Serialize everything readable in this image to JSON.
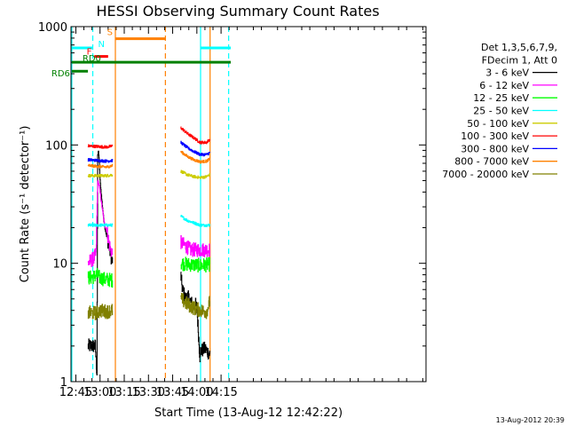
{
  "chart_data": {
    "type": "line",
    "title": "HESSI Observing Summary Count Rates",
    "xlabel": "Start Time (13-Aug-12 12:42:22)",
    "ylabel": "Count Rate (s⁻¹ detector⁻¹)",
    "yscale": "log",
    "xlim": [
      762,
      982
    ],
    "ylim": [
      1,
      1000
    ],
    "x_ticks": [
      {
        "value": 765,
        "label": "12:45"
      },
      {
        "value": 780,
        "label": "13:00"
      },
      {
        "value": 795,
        "label": "13:15"
      },
      {
        "value": 810,
        "label": "13:30"
      },
      {
        "value": 825,
        "label": "13:45"
      },
      {
        "value": 840,
        "label": "14:00"
      },
      {
        "value": 855,
        "label": "14:15"
      }
    ],
    "y_ticks": [
      {
        "value": 1,
        "label": "1"
      },
      {
        "value": 10,
        "label": "10"
      },
      {
        "value": 100,
        "label": "100"
      },
      {
        "value": 1000,
        "label": "1000"
      }
    ],
    "legend_header": [
      "Det 1,3,5,6,7,9,",
      "FDecim 1, Att 0"
    ],
    "legend_position": "right",
    "footer_date": "13-Aug-2012 20:39",
    "series": [
      {
        "name": "3 - 6 keV",
        "color": "#000000",
        "segments": [
          {
            "x": [
              772.5,
              774.5,
              775.5,
              776.5,
              777,
              777.5,
              778,
              778.5,
              779,
              779.5,
              780,
              781,
              782,
              783,
              784,
              785,
              786,
              787,
              787.7
            ],
            "y": [
              2,
              2,
              2,
              2,
              2,
              1.5,
              1.2,
              80,
              90,
              70,
              50,
              35,
              25,
              20,
              17,
              15,
              13,
              11,
              10
            ]
          },
          {
            "x": [
              830,
              831,
              832,
              833,
              834,
              835,
              836,
              837,
              838,
              839,
              840,
              841,
              842
            ],
            "y": [
              8,
              6,
              5.5,
              5,
              5.3,
              5,
              4.8,
              4.5,
              4.3,
              4.5,
              4.2,
              2.5,
              1.5
            ]
          },
          {
            "x": [
              842,
              845,
              848
            ],
            "y": [
              1.8,
              1.9,
              1.7
            ]
          }
        ]
      },
      {
        "name": "6 - 12 keV",
        "color": "#ff00ff",
        "segments": [
          {
            "x": [
              772.5,
              774,
              776,
              777.5,
              778.5,
              779.5,
              780.5,
              781.5,
              782.5,
              783.5,
              784.5,
              785.5,
              786.5,
              787.7
            ],
            "y": [
              10,
              10.5,
              11,
              12,
              50,
              45,
              35,
              28,
              22,
              20,
              18,
              15,
              13,
              12
            ]
          },
          {
            "x": [
              830,
              833,
              836,
              839,
              842,
              845,
              848
            ],
            "y": [
              15,
              14,
              13,
              13,
              13,
              13,
              13
            ]
          }
        ]
      },
      {
        "name": "12 - 25 keV",
        "color": "#00ff00",
        "segments": [
          {
            "x": [
              772.5,
              776,
              778,
              780,
              784,
              787.7
            ],
            "y": [
              7.5,
              7.7,
              8,
              7.5,
              7.3,
              7.2
            ]
          },
          {
            "x": [
              830,
              834,
              838,
              842,
              846,
              848
            ],
            "y": [
              10,
              9.8,
              9.7,
              9.6,
              9.7,
              9.8
            ]
          }
        ]
      },
      {
        "name": "25 - 50 keV",
        "color": "#00ffff",
        "segments": [
          {
            "x": [
              772.5,
              778,
              784,
              787.7
            ],
            "y": [
              21,
              21,
              21,
              21
            ]
          },
          {
            "x": [
              830,
              834,
              838,
              842,
              846,
              848
            ],
            "y": [
              25,
              23,
              22,
              21,
              21,
              21
            ]
          }
        ]
      },
      {
        "name": "50 - 100 keV",
        "color": "#cccc00",
        "segments": [
          {
            "x": [
              772.5,
              778,
              784,
              787.7
            ],
            "y": [
              55,
              55,
              55,
              56
            ]
          },
          {
            "x": [
              830,
              834,
              838,
              842,
              846,
              848
            ],
            "y": [
              60,
              56,
              54,
              53,
              54,
              56
            ]
          }
        ]
      },
      {
        "name": "100 - 300 keV",
        "color": "#ff0000",
        "segments": [
          {
            "x": [
              772.5,
              778,
              784,
              787.7
            ],
            "y": [
              98,
              97,
              96,
              98
            ]
          },
          {
            "x": [
              830,
              834,
              838,
              842,
              846,
              848
            ],
            "y": [
              140,
              125,
              115,
              105,
              105,
              112
            ]
          }
        ]
      },
      {
        "name": "300 - 800 keV",
        "color": "#0000ff",
        "segments": [
          {
            "x": [
              772.5,
              778,
              784,
              787.7
            ],
            "y": [
              75,
              74,
              73,
              74
            ]
          },
          {
            "x": [
              830,
              834,
              838,
              842,
              846,
              848
            ],
            "y": [
              105,
              95,
              88,
              83,
              83,
              86
            ]
          }
        ]
      },
      {
        "name": "800 - 7000 keV",
        "color": "#ff8000",
        "segments": [
          {
            "x": [
              772.5,
              778,
              784,
              787.7
            ],
            "y": [
              67,
              66,
              65,
              67
            ]
          },
          {
            "x": [
              830,
              834,
              838,
              842,
              846,
              848
            ],
            "y": [
              88,
              80,
              75,
              72,
              73,
              76
            ]
          }
        ]
      },
      {
        "name": "7000 - 20000 keV",
        "color": "#808000",
        "segments": [
          {
            "x": [
              772.5,
              776,
              778,
              780,
              784,
              787.7
            ],
            "y": [
              3.8,
              3.8,
              3.8,
              4,
              3.9,
              4
            ]
          },
          {
            "x": [
              830,
              834,
              838,
              842,
              846,
              848
            ],
            "y": [
              5,
              4.5,
              4.2,
              4,
              3.9,
              4.8
            ]
          }
        ]
      }
    ],
    "vertical_lines": [
      {
        "x": 762.5,
        "color": "#00ffff",
        "style": "solid"
      },
      {
        "x": 775.5,
        "color": "#00ffff",
        "style": "dashed"
      },
      {
        "x": 789.5,
        "color": "#ff8000",
        "style": "solid"
      },
      {
        "x": 820.5,
        "color": "#ff8000",
        "style": "dashed"
      },
      {
        "x": 842.3,
        "color": "#00ffff",
        "style": "solid"
      },
      {
        "x": 848.2,
        "color": "#ff8000",
        "style": "solid"
      },
      {
        "x": 859.7,
        "color": "#00ffff",
        "style": "dashed"
      }
    ],
    "flag_bars": [
      {
        "label": "N",
        "color": "#00ffff",
        "x0": 762.5,
        "x1": 775.5,
        "y": 660,
        "label_side": "right"
      },
      {
        "label": "N",
        "color": "#00ffff",
        "x0": 842.3,
        "x1": 861,
        "y": 660,
        "label_side": "none"
      },
      {
        "label": "F",
        "color": "#ff0000",
        "x0": 776.5,
        "x1": 785,
        "y": 560,
        "label_side": "left"
      },
      {
        "label": "S",
        "color": "#ff8000",
        "x0": 789.5,
        "x1": 820.5,
        "y": 790,
        "label_side": "left-above"
      },
      {
        "label": "RD0",
        "color": "#008000",
        "x0": 762.5,
        "x1": 861,
        "y": 500,
        "label_side": "left-start"
      },
      {
        "label": "RD6",
        "color": "#008000",
        "x0": 762.5,
        "x1": 772.5,
        "y": 420,
        "label_side": "left-outside"
      }
    ]
  }
}
